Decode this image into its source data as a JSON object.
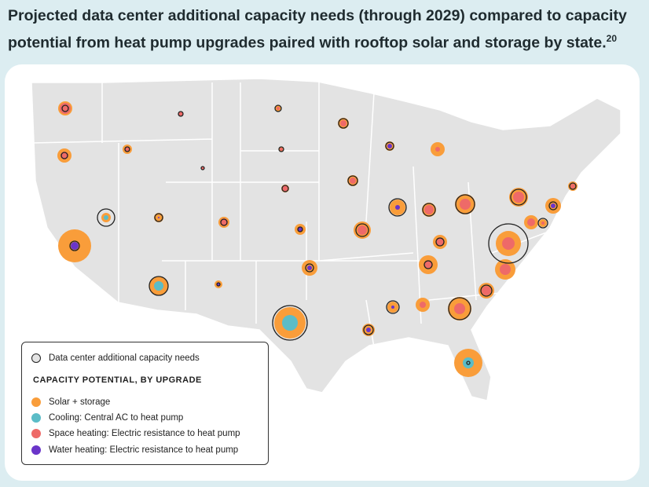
{
  "title": "Projected data center additional capacity needs (through 2029) compared to capacity potential from heat pump upgrades paired with rooftop solar and storage by state.",
  "footnote": "20",
  "legend": {
    "ring_label": "Data center additional capacity needs",
    "heading": "CAPACITY POTENTIAL, BY UPGRADE",
    "items": [
      {
        "label": "Solar + storage",
        "color": "#f99d3a"
      },
      {
        "label": "Cooling: Central AC to heat pump",
        "color": "#5bbcc7"
      },
      {
        "label": "Space heating: Electric resistance to heat pump",
        "color": "#ee6a68"
      },
      {
        "label": "Water heating: Electric resistance to heat pump",
        "color": "#6a35c9"
      }
    ]
  },
  "colors": {
    "map_fill": "#e3e3e3",
    "ring": "#222222",
    "background": "#dcedf1"
  },
  "bubbles_relative": [
    {
      "solar": 9,
      "inner": "space",
      "inner_size": 7,
      "need": 4
    },
    {
      "solar": 9,
      "inner": "space",
      "inner_size": 5,
      "need": 4
    },
    {
      "solar": 6,
      "inner": "space",
      "inner_size": 3,
      "need": 3
    },
    {
      "solar": 0,
      "inner": "space",
      "inner_size": 3,
      "need": 3
    },
    {
      "solar": 0,
      "inner": "space",
      "inner_size": 2,
      "need": 2
    },
    {
      "solar": 4,
      "inner": "space",
      "inner_size": 2,
      "need": 4
    },
    {
      "solar": 3,
      "inner": "space",
      "inner_size": 2,
      "need": 3
    },
    {
      "solar": 5,
      "inner": "space",
      "inner_size": 4,
      "need": 4
    },
    {
      "solar": 6,
      "inner": "cooling",
      "inner_size": 3,
      "need": 11
    },
    {
      "solar": 6,
      "inner": "water",
      "inner_size": 1,
      "need": 5
    },
    {
      "solar": 7,
      "inner": "space",
      "inner_size": 5,
      "need": 4
    },
    {
      "solar": 7,
      "inner": "water",
      "inner_size": 3,
      "need": 3
    },
    {
      "solar": 21,
      "inner": "water",
      "inner_size": 5,
      "need": 6
    },
    {
      "solar": 12,
      "inner": "cooling",
      "inner_size": 6,
      "need": 12
    },
    {
      "solar": 5,
      "inner": "water",
      "inner_size": 2,
      "need": 2
    },
    {
      "solar": 10,
      "inner": "water",
      "inner_size": 3,
      "need": 5
    },
    {
      "solar": 20,
      "inner": "cooling",
      "inner_size": 10,
      "need": 22
    },
    {
      "solar": 7,
      "inner": "space",
      "inner_size": 4,
      "need": 6
    },
    {
      "solar": 6,
      "inner": "water",
      "inner_size": 3,
      "need": 5
    },
    {
      "solar": 9,
      "inner": "space",
      "inner_size": 3,
      "need": 0
    },
    {
      "solar": 7,
      "inner": "space",
      "inner_size": 4,
      "need": 6
    },
    {
      "solar": 10,
      "inner": "water",
      "inner_size": 3,
      "need": 11
    },
    {
      "solar": 9,
      "inner": "space",
      "inner_size": 6,
      "need": 8
    },
    {
      "solar": 13,
      "inner": "space",
      "inner_size": 7,
      "need": 12
    },
    {
      "solar": 11,
      "inner": "space",
      "inner_size": 6,
      "need": 8
    },
    {
      "solar": 9,
      "inner": "space",
      "inner_size": 5,
      "need": 5
    },
    {
      "solar": 12,
      "inner": "space",
      "inner_size": 5,
      "need": 5
    },
    {
      "solar": 7,
      "inner": "water",
      "inner_size": 2,
      "need": 8
    },
    {
      "solar": 8,
      "inner": "water",
      "inner_size": 3,
      "need": 6
    },
    {
      "solar": 9,
      "inner": "space",
      "inner_size": 4,
      "need": 0
    },
    {
      "solar": 15,
      "inner": "space",
      "inner_size": 7,
      "need": 14
    },
    {
      "solar": 18,
      "inner": "cooling",
      "inner_size": 7,
      "need": 2
    },
    {
      "solar": 10,
      "inner": "space",
      "inner_size": 6,
      "need": 7
    },
    {
      "solar": 13,
      "inner": "space",
      "inner_size": 7,
      "need": 0
    },
    {
      "solar": 16,
      "inner": "space",
      "inner_size": 8,
      "need": 25
    },
    {
      "solar": 12,
      "inner": "space",
      "inner_size": 7,
      "need": 10
    },
    {
      "solar": 10,
      "inner": "water",
      "inner_size": 3,
      "need": 5
    },
    {
      "solar": 9,
      "inner": "space",
      "inner_size": 5,
      "need": 0
    },
    {
      "solar": 5,
      "inner": "space",
      "inner_size": 2,
      "need": 6
    },
    {
      "solar": 6,
      "inner": "space",
      "inner_size": 3,
      "need": 4
    }
  ]
}
